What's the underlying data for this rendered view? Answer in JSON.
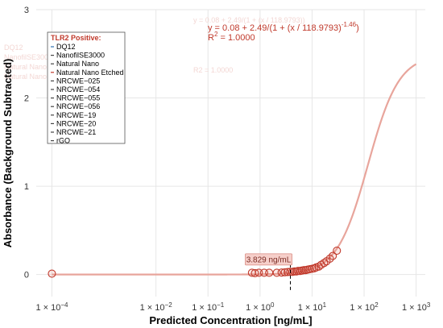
{
  "chart_data": {
    "type": "scatter",
    "xscale": "log",
    "xlim": [
      5e-05,
      1500
    ],
    "ylim": [
      -0.25,
      3
    ],
    "xlabel": "Predicted Concentration [ng/mL]",
    "ylabel": "Absorbance (Background Subtracted)",
    "x_ticks": [
      {
        "value": 0.0001,
        "label_base": "1 × 10",
        "label_exp": "−4"
      },
      {
        "value": 0.01,
        "label_base": "1 × 10",
        "label_exp": "−2"
      },
      {
        "value": 0.1,
        "label_base": "1 × 10",
        "label_exp": "−1"
      },
      {
        "value": 1,
        "label_base": "1 × 10",
        "label_exp": "0"
      },
      {
        "value": 10,
        "label_base": "1 × 10",
        "label_exp": "1"
      },
      {
        "value": 100,
        "label_base": "1 × 10",
        "label_exp": "2"
      },
      {
        "value": 1000,
        "label_base": "1 × 10",
        "label_exp": "3"
      }
    ],
    "y_ticks": [
      {
        "value": 0,
        "label": "0"
      },
      {
        "value": 1,
        "label": "1"
      },
      {
        "value": 2,
        "label": "2"
      },
      {
        "value": 3,
        "label": "3"
      }
    ],
    "grid": true,
    "fit": {
      "bottom": 0.08,
      "span": 2.49,
      "ec50": 118.9793,
      "hill": -1.46,
      "equation_prefix": "y = 0.08 + 2.49/(1 + (x / 118.9793)",
      "equation_exp": "-1.46",
      "equation_suffix": ")",
      "r2_prefix": "R",
      "r2_exp": "2",
      "r2_suffix": " = 1.0000",
      "color": "#e8a59c"
    },
    "points": {
      "color": "#c0392b",
      "x": [
        0.0001,
        0.7,
        0.8,
        0.95,
        1.2,
        1.5,
        2.1,
        2.6,
        3.0,
        3.4,
        3.8,
        4.2,
        4.6,
        5.0,
        5.4,
        5.9,
        6.4,
        7.0,
        7.6,
        8.3,
        9.0,
        10,
        11,
        12,
        13.5,
        15,
        17,
        19,
        22,
        25,
        30
      ],
      "y": [
        0.01,
        0.02,
        0.015,
        0.02,
        0.02,
        0.02,
        0.02,
        0.022,
        0.025,
        0.028,
        0.03,
        0.03,
        0.035,
        0.035,
        0.04,
        0.04,
        0.045,
        0.05,
        0.05,
        0.055,
        0.06,
        0.065,
        0.07,
        0.08,
        0.09,
        0.11,
        0.13,
        0.15,
        0.18,
        0.21,
        0.27
      ]
    },
    "marker": {
      "x": 3.829,
      "label": "3.829 ng/mL",
      "y_top": 0.18,
      "y_bottom": -0.2
    },
    "legend": {
      "placement": "top-left",
      "title": "TLR2 Positive:",
      "items": [
        "DQ12",
        "NanofilSE3000",
        "Natural Nano",
        "Natural Nano Etched",
        "NRCWE−025",
        "NRCWE−054",
        "NRCWE−055",
        "NRCWE−056",
        "NRCWE−19",
        "NRCWE−20",
        "NRCWE−21",
        "rGO"
      ],
      "swatch_colors": [
        "#2d6fb0",
        "#444444",
        "#444444",
        "#c0392b",
        "#444444",
        "#444444",
        "#444444",
        "#444444",
        "#444444",
        "#444444",
        "#444444",
        "#444444"
      ]
    }
  }
}
